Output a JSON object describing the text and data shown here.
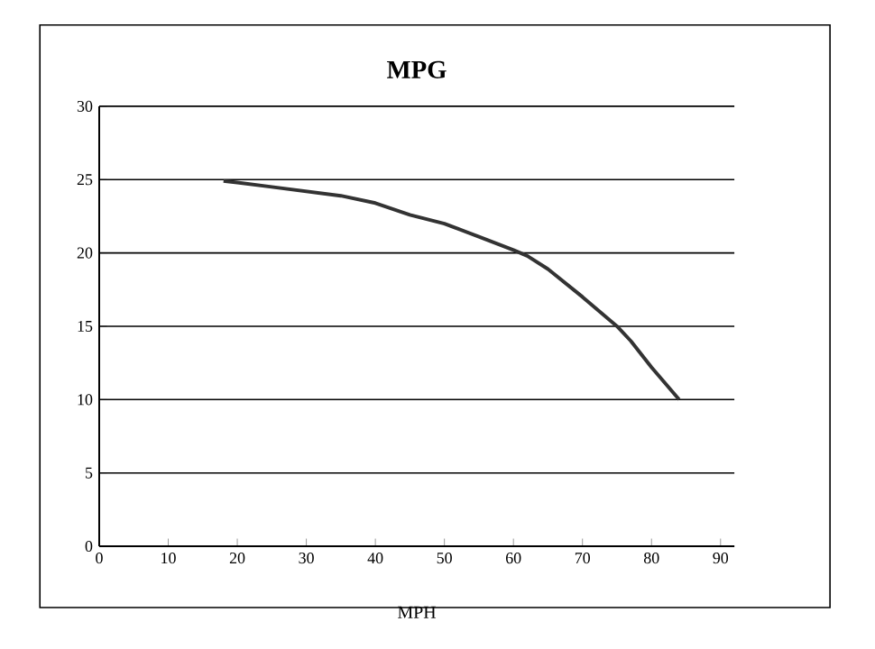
{
  "chart_data": {
    "type": "line",
    "title": "MPG",
    "xlabel": "MPH",
    "x": [
      18,
      20,
      25,
      30,
      35,
      40,
      45,
      50,
      55,
      60,
      62,
      65,
      70,
      75,
      77,
      80,
      84
    ],
    "values": [
      24.9,
      24.8,
      24.5,
      24.2,
      23.9,
      23.4,
      22.6,
      22.0,
      21.1,
      20.2,
      19.8,
      18.9,
      17.0,
      15.0,
      14.0,
      12.2,
      10.0
    ],
    "color": "#333333",
    "xlim": [
      0,
      92
    ],
    "ylim": [
      0,
      30
    ],
    "xticks": [
      0,
      10,
      20,
      30,
      40,
      50,
      60,
      70,
      80,
      90
    ],
    "yticks": [
      0,
      5,
      10,
      15,
      20,
      25,
      30
    ],
    "grid": "y",
    "marker": "none",
    "line_style": "solid"
  }
}
